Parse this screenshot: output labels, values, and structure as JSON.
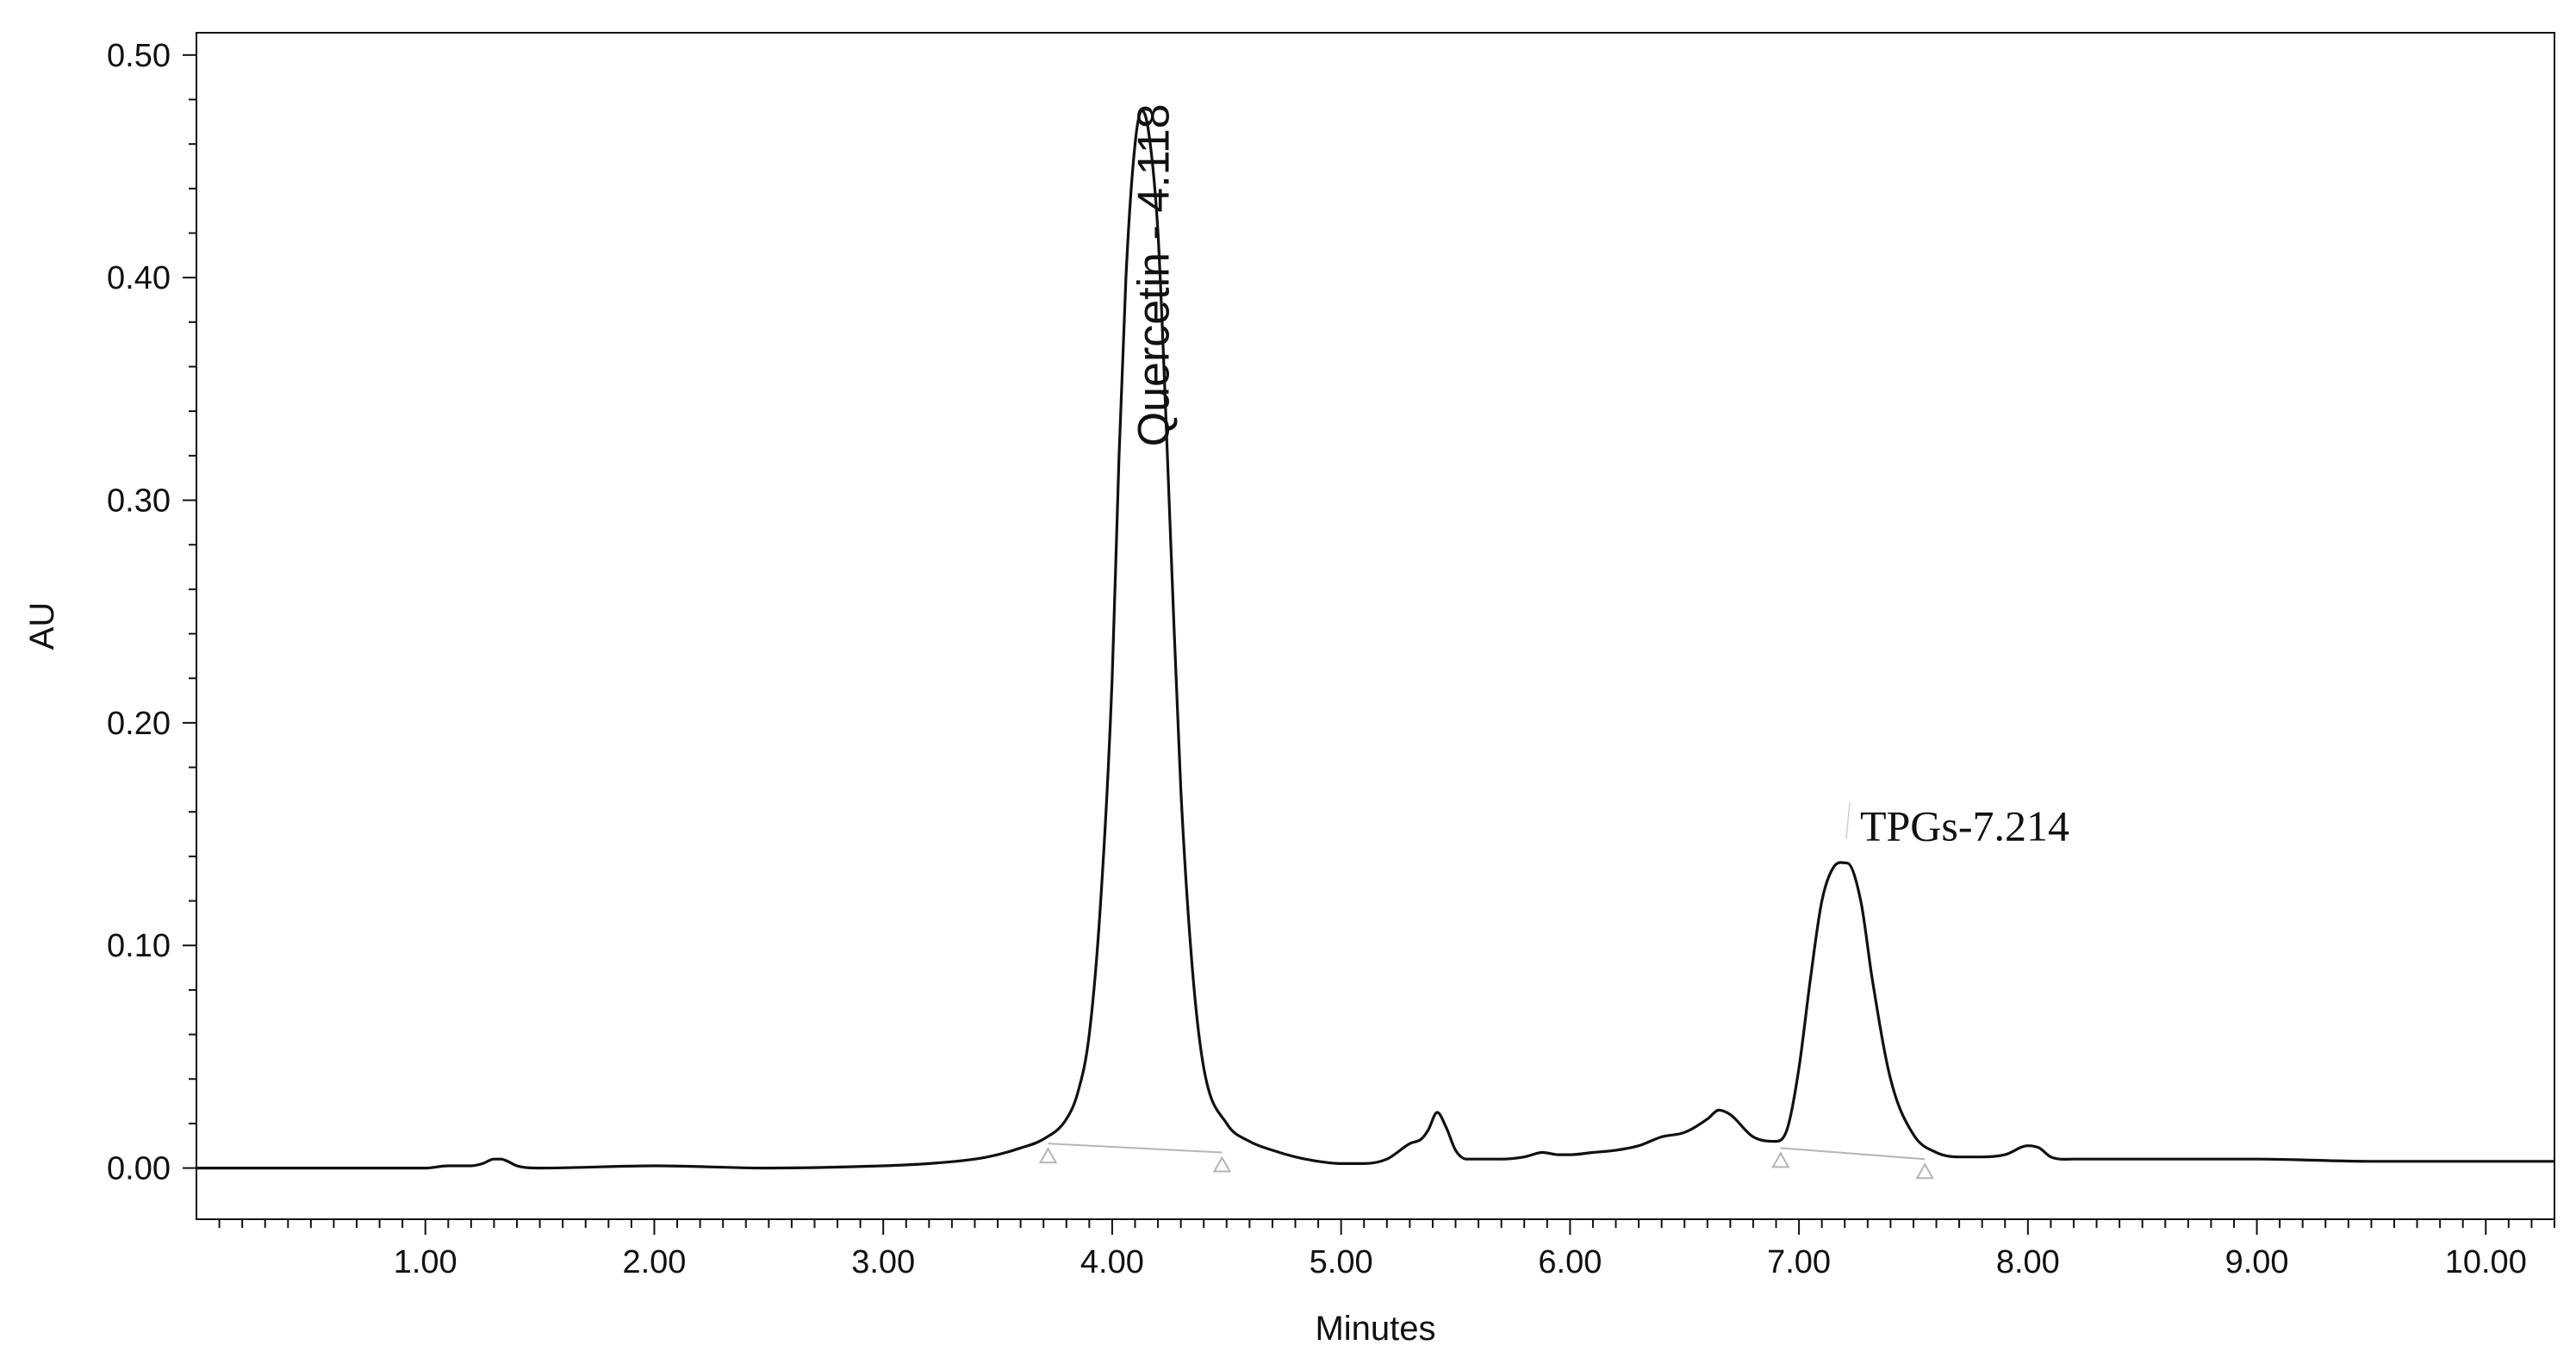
{
  "chart_data": {
    "type": "line",
    "title": "",
    "xlabel": "Minutes",
    "ylabel": "AU",
    "xlim": [
      0.0,
      10.3
    ],
    "ylim": [
      -0.023,
      0.51
    ],
    "x_ticks": [
      1.0,
      2.0,
      3.0,
      4.0,
      5.0,
      6.0,
      7.0,
      8.0,
      9.0,
      10.0
    ],
    "x_tick_labels": [
      "1.00",
      "2.00",
      "3.00",
      "4.00",
      "5.00",
      "6.00",
      "7.00",
      "8.00",
      "9.00",
      "10.00"
    ],
    "y_ticks": [
      0.0,
      0.1,
      0.2,
      0.3,
      0.4,
      0.5
    ],
    "y_tick_labels": [
      "0.00",
      "0.10",
      "0.20",
      "0.30",
      "0.40",
      "0.50"
    ],
    "grid": false,
    "line_color": "#111111",
    "baseline_color": "#b5b5b5",
    "series": [
      {
        "x": [
          0.0,
          0.5,
          1.0,
          1.1,
          1.2,
          1.25,
          1.3,
          1.33,
          1.36,
          1.4,
          1.5,
          2.0,
          2.5,
          3.0,
          3.2,
          3.4,
          3.5,
          3.6,
          3.7,
          3.8,
          3.85,
          3.9,
          3.95,
          4.0,
          4.03,
          4.06,
          4.1,
          4.13,
          4.16,
          4.2,
          4.23,
          4.26,
          4.3,
          4.35,
          4.4,
          4.5,
          4.6,
          4.7,
          4.8,
          4.9,
          5.0,
          5.1,
          5.2,
          5.3,
          5.35,
          5.38,
          5.42,
          5.46,
          5.5,
          5.55,
          5.6,
          5.7,
          5.8,
          5.88,
          5.95,
          6.0,
          6.1,
          6.2,
          6.3,
          6.4,
          6.5,
          6.6,
          6.65,
          6.7,
          6.8,
          6.9,
          6.95,
          7.0,
          7.05,
          7.1,
          7.15,
          7.21,
          7.27,
          7.32,
          7.4,
          7.5,
          7.6,
          7.7,
          7.8,
          7.9,
          8.0,
          8.05,
          8.1,
          8.2,
          8.5,
          9.0,
          9.5,
          10.0,
          10.3
        ],
        "y": [
          0.0,
          0.0,
          0.0,
          0.001,
          0.001,
          0.002,
          0.004,
          0.004,
          0.003,
          0.001,
          0.0,
          0.001,
          0.0,
          0.001,
          0.002,
          0.004,
          0.006,
          0.009,
          0.013,
          0.022,
          0.034,
          0.06,
          0.12,
          0.22,
          0.32,
          0.4,
          0.46,
          0.475,
          0.465,
          0.42,
          0.35,
          0.27,
          0.17,
          0.09,
          0.045,
          0.02,
          0.012,
          0.008,
          0.005,
          0.003,
          0.002,
          0.002,
          0.004,
          0.011,
          0.013,
          0.017,
          0.025,
          0.018,
          0.008,
          0.004,
          0.004,
          0.004,
          0.005,
          0.007,
          0.006,
          0.006,
          0.007,
          0.008,
          0.01,
          0.014,
          0.016,
          0.022,
          0.026,
          0.024,
          0.014,
          0.012,
          0.018,
          0.045,
          0.085,
          0.12,
          0.135,
          0.137,
          0.12,
          0.085,
          0.04,
          0.015,
          0.007,
          0.005,
          0.005,
          0.006,
          0.01,
          0.009,
          0.005,
          0.004,
          0.004,
          0.004,
          0.003,
          0.003,
          0.003
        ]
      }
    ],
    "baselines": [
      {
        "x": [
          3.72,
          4.48
        ],
        "y": [
          0.011,
          0.007
        ]
      },
      {
        "x": [
          6.92,
          7.55
        ],
        "y": [
          0.009,
          0.004
        ]
      }
    ],
    "annotations": [
      {
        "text": "Quercetin - 4.118",
        "x": 4.118,
        "y": 0.475,
        "rotation": -90
      },
      {
        "text": "TPGs-7.214",
        "x": 7.214,
        "y": 0.137,
        "rotation": 0
      }
    ]
  }
}
